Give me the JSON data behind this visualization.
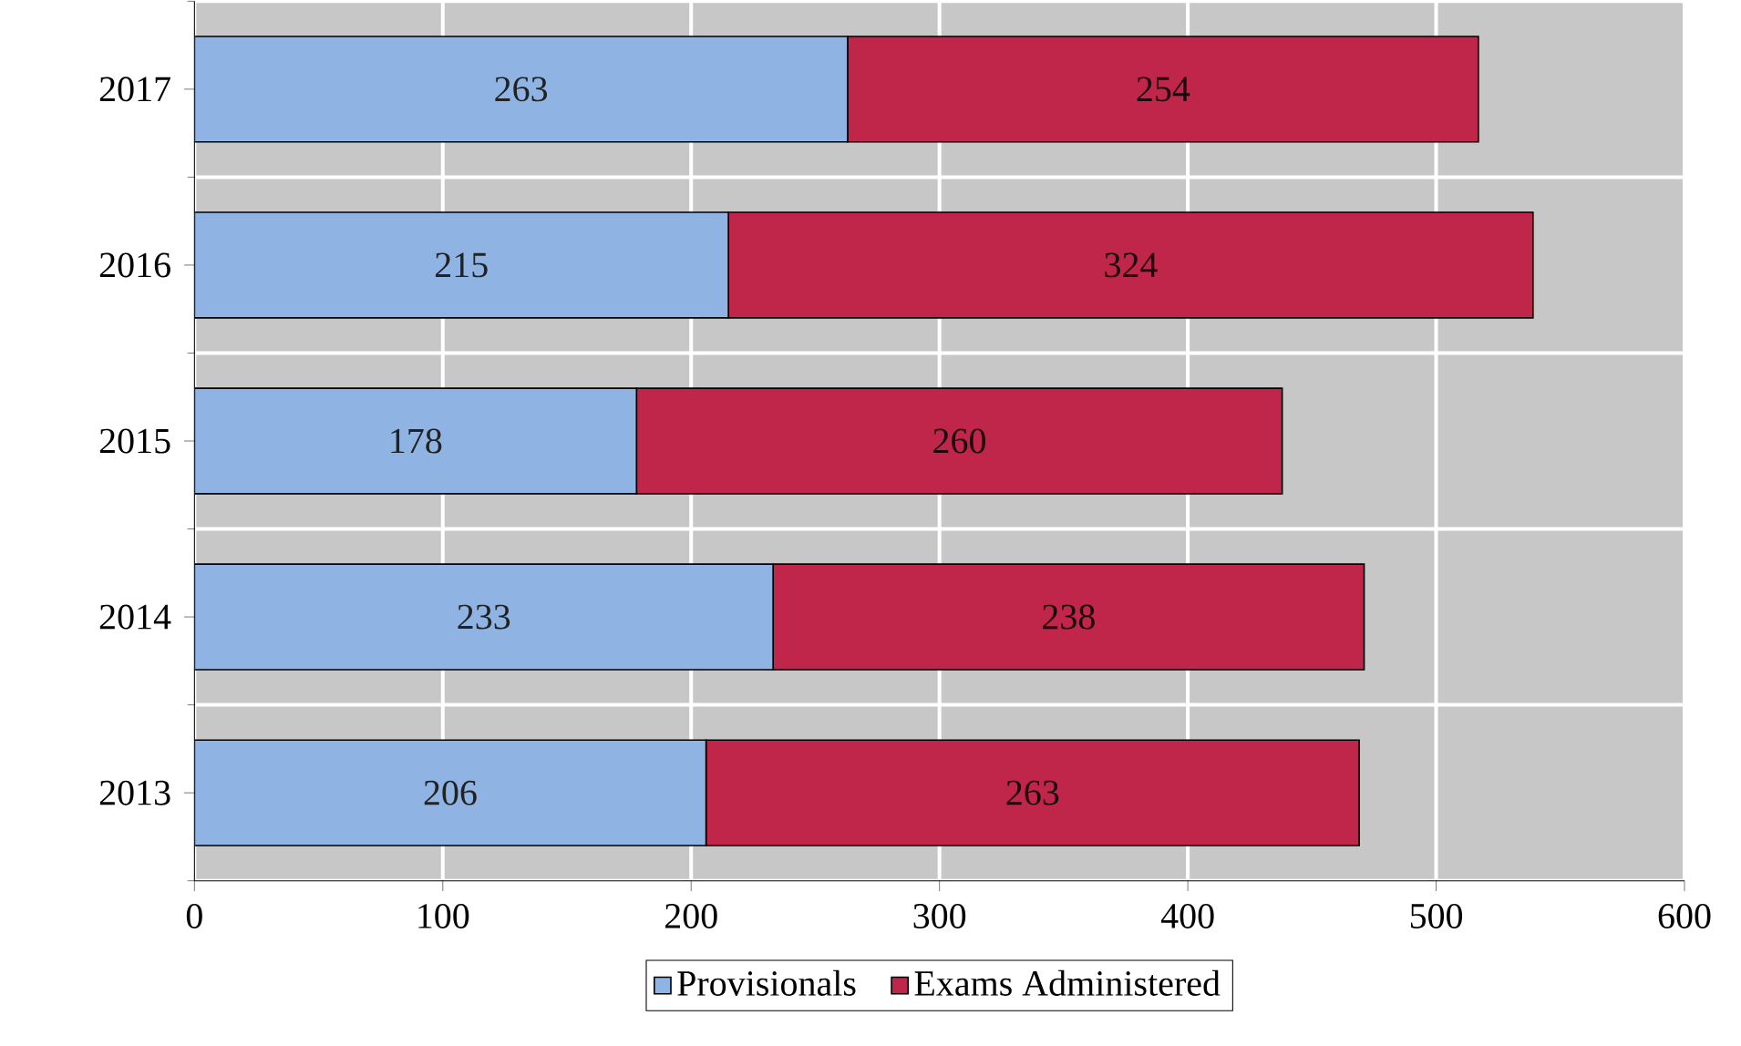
{
  "chart_data": {
    "type": "bar",
    "orientation": "horizontal",
    "stacked": true,
    "categories": [
      "2017",
      "2016",
      "2015",
      "2014",
      "2013"
    ],
    "series": [
      {
        "name": "Provisionals",
        "color": "#8fb4e3",
        "values": [
          263,
          215,
          178,
          233,
          206
        ]
      },
      {
        "name": "Exams Administered",
        "color": "#c0254a",
        "values": [
          254,
          324,
          260,
          238,
          263
        ]
      }
    ],
    "xlim": [
      0,
      600
    ],
    "xticks": [
      0,
      100,
      200,
      300,
      400,
      500,
      600
    ],
    "grid": true,
    "legend": "bottom",
    "data_labels": true
  }
}
